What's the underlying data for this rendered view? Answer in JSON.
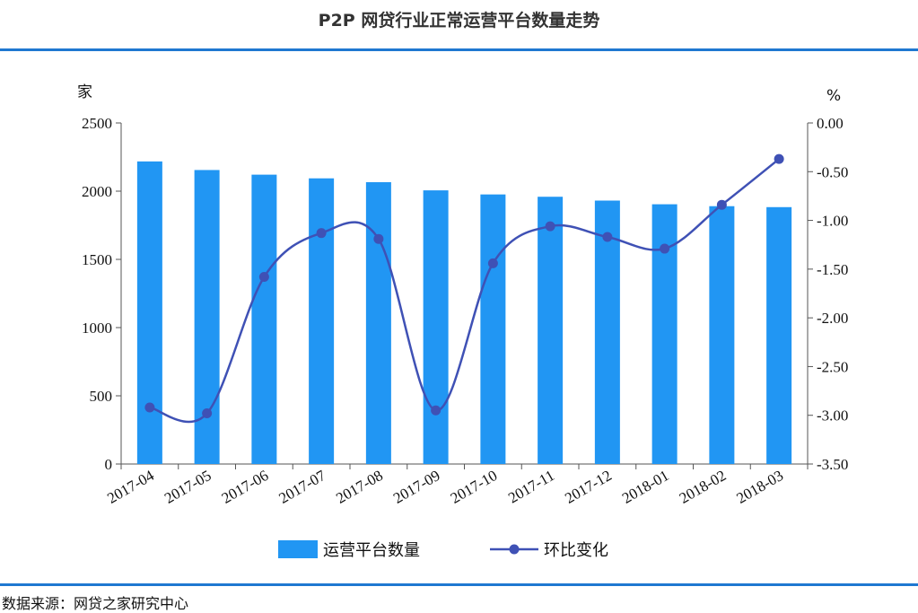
{
  "title": "P2P 网贷行业正常运营平台数量走势",
  "source": "数据来源：网贷之家研究中心",
  "chart_data": {
    "type": "bar+line",
    "title": "P2P 网贷行业正常运营平台数量走势",
    "categories": [
      "2017-04",
      "2017-05",
      "2017-06",
      "2017-07",
      "2017-08",
      "2017-09",
      "2017-10",
      "2017-11",
      "2017-12",
      "2018-01",
      "2018-02",
      "2018-03"
    ],
    "series": [
      {
        "name": "运营平台数量",
        "kind": "bar",
        "axis": "left",
        "color": "#2196f3",
        "values": [
          2218,
          2155,
          2121,
          2094,
          2066,
          2006,
          1976,
          1959,
          1931,
          1904,
          1890,
          1883
        ]
      },
      {
        "name": "环比变化",
        "kind": "line",
        "axis": "right",
        "color": "#3f51b5",
        "values": [
          -2.92,
          -2.98,
          -1.58,
          -1.13,
          -1.19,
          -2.95,
          -1.44,
          -1.06,
          -1.17,
          -1.29,
          -0.84,
          -0.37
        ]
      }
    ],
    "yleft": {
      "label": "家",
      "min": 0,
      "max": 2500,
      "ticks": [
        0,
        500,
        1000,
        1500,
        2000,
        2500
      ]
    },
    "yright": {
      "label": "%",
      "min": -3.5,
      "max": 0,
      "ticks": [
        "0.00",
        "-0.50",
        "-1.00",
        "-1.50",
        "-2.00",
        "-2.50",
        "-3.00",
        "-3.50"
      ]
    },
    "legend": "bottom-center"
  }
}
